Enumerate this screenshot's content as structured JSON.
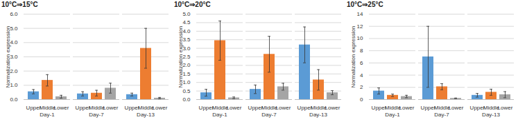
{
  "chart_data": [
    {
      "type": "bar",
      "title": "10°C⇒15°C",
      "ylabel": "Normalization expression",
      "categories": [
        "Day-1",
        "Day-7",
        "Day-13"
      ],
      "series": [
        {
          "name": "Upper",
          "color": "#5b9bd5",
          "values": [
            0.55,
            0.4,
            0.35
          ],
          "errors": [
            0.15,
            0.15,
            0.1
          ]
        },
        {
          "name": "Middle",
          "color": "#ed7d31",
          "values": [
            1.35,
            0.45,
            3.6
          ],
          "errors": [
            0.4,
            0.2,
            1.4
          ]
        },
        {
          "name": "Lower",
          "color": "#a5a5a5",
          "values": [
            0.2,
            0.8,
            0.1
          ],
          "errors": [
            0.1,
            0.35,
            0.05
          ]
        }
      ],
      "ylim": [
        0,
        6
      ],
      "yticks": [
        0,
        1,
        2,
        3,
        4,
        5,
        6
      ],
      "grid": true
    },
    {
      "type": "bar",
      "title": "10°C⇒20°C",
      "ylabel": "Normalization expression",
      "categories": [
        "Day-1",
        "Day-7",
        "Day-13"
      ],
      "series": [
        {
          "name": "Upper",
          "color": "#5b9bd5",
          "values": [
            0.4,
            0.6,
            3.2
          ],
          "errors": [
            0.2,
            0.25,
            1.05
          ]
        },
        {
          "name": "Middle",
          "color": "#ed7d31",
          "values": [
            3.45,
            2.65,
            1.15
          ],
          "errors": [
            1.15,
            1.05,
            0.6
          ]
        },
        {
          "name": "Lower",
          "color": "#a5a5a5",
          "values": [
            0.1,
            0.75,
            0.4
          ],
          "errors": [
            0.05,
            0.2,
            0.12
          ]
        }
      ],
      "ylim": [
        0,
        5
      ],
      "yticks": [
        0,
        0.5,
        1,
        1.5,
        2,
        2.5,
        3,
        3.5,
        4,
        4.5,
        5
      ],
      "grid": true
    },
    {
      "type": "bar",
      "title": "10°C⇒25°C",
      "ylabel": "Normalization expression",
      "categories": [
        "Day-1",
        "Day-7",
        "Day-13"
      ],
      "series": [
        {
          "name": "Upper",
          "color": "#5b9bd5",
          "values": [
            1.4,
            7.0,
            0.7
          ],
          "errors": [
            0.5,
            5.0,
            0.3
          ]
        },
        {
          "name": "Middle",
          "color": "#ed7d31",
          "values": [
            0.7,
            2.1,
            1.2
          ],
          "errors": [
            0.2,
            0.5,
            0.5
          ]
        },
        {
          "name": "Lower",
          "color": "#a5a5a5",
          "values": [
            0.5,
            0.2,
            0.8
          ],
          "errors": [
            0.2,
            0.05,
            0.5
          ]
        }
      ],
      "ylim": [
        0,
        14
      ],
      "yticks": [
        0,
        2,
        4,
        6,
        8,
        10,
        12,
        14
      ],
      "grid": true
    }
  ]
}
